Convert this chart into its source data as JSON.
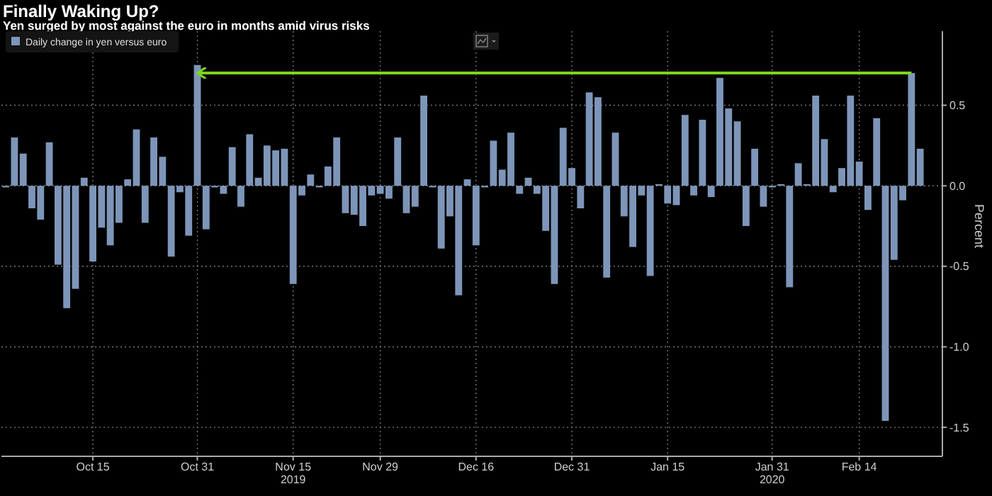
{
  "chart_data": {
    "type": "bar",
    "title": "Finally Waking Up?",
    "subtitle": "Yen surged by most against the euro in months amid virus risks",
    "ylabel": "Percent",
    "categories": [
      null,
      null,
      null,
      null,
      null,
      null,
      null,
      null,
      null,
      null,
      "Oct 15",
      null,
      null,
      null,
      null,
      null,
      null,
      null,
      null,
      null,
      null,
      null,
      "Oct 31",
      null,
      null,
      null,
      null,
      null,
      null,
      null,
      null,
      null,
      null,
      "Nov 15\n2019",
      null,
      null,
      null,
      null,
      null,
      null,
      null,
      null,
      null,
      "Nov 29",
      null,
      null,
      null,
      null,
      null,
      null,
      null,
      null,
      null,
      null,
      "Dec 16",
      null,
      null,
      null,
      null,
      null,
      null,
      null,
      null,
      null,
      null,
      "Dec 31",
      null,
      null,
      null,
      null,
      null,
      null,
      null,
      null,
      null,
      null,
      "Jan 15",
      null,
      null,
      null,
      null,
      null,
      null,
      null,
      null,
      null,
      null,
      null,
      "Jan 31\n2020",
      null,
      null,
      null,
      null,
      null,
      null,
      null,
      null,
      null,
      "Feb 14",
      null,
      null,
      null,
      null,
      null,
      null,
      null
    ],
    "series": [
      {
        "name": "Daily change in yen versus euro",
        "color": "#7d95b8",
        "values": [
          -0.01,
          0.3,
          0.2,
          -0.14,
          -0.21,
          0.27,
          -0.49,
          -0.76,
          -0.64,
          0.05,
          -0.47,
          -0.26,
          -0.37,
          -0.23,
          0.04,
          0.35,
          -0.23,
          0.3,
          0.18,
          -0.44,
          -0.04,
          -0.31,
          0.75,
          -0.27,
          -0.01,
          -0.05,
          0.24,
          -0.13,
          0.32,
          0.05,
          0.25,
          0.22,
          0.23,
          -0.61,
          -0.06,
          0.07,
          -0.01,
          0.12,
          0.3,
          -0.17,
          -0.18,
          -0.25,
          -0.06,
          -0.05,
          -0.08,
          0.3,
          -0.17,
          -0.13,
          0.56,
          -0.01,
          -0.39,
          -0.19,
          -0.68,
          0.04,
          -0.37,
          -0.01,
          0.28,
          0.1,
          0.33,
          -0.05,
          0.05,
          -0.05,
          -0.28,
          -0.61,
          0.36,
          0.11,
          -0.14,
          0.58,
          0.55,
          -0.57,
          0.33,
          -0.19,
          -0.38,
          -0.06,
          -0.56,
          0.01,
          -0.11,
          -0.12,
          0.44,
          -0.06,
          0.41,
          -0.07,
          0.67,
          0.48,
          0.4,
          -0.25,
          0.23,
          -0.13,
          -0.01,
          0.01,
          -0.63,
          0.14,
          0.01,
          0.56,
          0.29,
          -0.04,
          0.11,
          0.56,
          0.15,
          -0.15,
          0.42,
          -1.46,
          -0.46,
          -0.09,
          0.7,
          0.23
        ]
      },
      {
        "type": "line",
        "color": "#7ed321",
        "values": [
          null,
          null,
          null,
          null,
          null,
          null,
          null,
          null,
          null,
          null,
          null,
          null,
          null,
          null,
          null,
          null,
          null,
          null,
          null,
          null,
          null,
          null,
          0.7,
          null,
          null,
          null,
          null,
          null,
          null,
          null,
          null,
          null,
          null,
          null,
          null,
          null,
          null,
          null,
          null,
          null,
          null,
          null,
          null,
          null,
          null,
          null,
          null,
          null,
          null,
          null,
          null,
          null,
          null,
          null,
          null,
          null,
          null,
          null,
          null,
          null,
          null,
          null,
          null,
          null,
          null,
          null,
          null,
          null,
          null,
          null,
          null,
          null,
          null,
          null,
          null,
          null,
          null,
          null,
          null,
          null,
          null,
          null,
          null,
          null,
          null,
          null,
          null,
          null,
          null,
          null,
          null,
          null,
          null,
          null,
          null,
          null,
          null,
          null,
          null,
          null,
          null,
          null,
          null,
          null,
          0.7,
          null
        ]
      }
    ],
    "ylim": [
      -1.68,
      0.96
    ],
    "yticks": [
      -1.5,
      {
        "value": -1,
        "label": "-1.0"
      },
      -0.5,
      {
        "value": 0,
        "label": "0.0"
      },
      0.5
    ],
    "grid": true,
    "legend": "top left"
  }
}
